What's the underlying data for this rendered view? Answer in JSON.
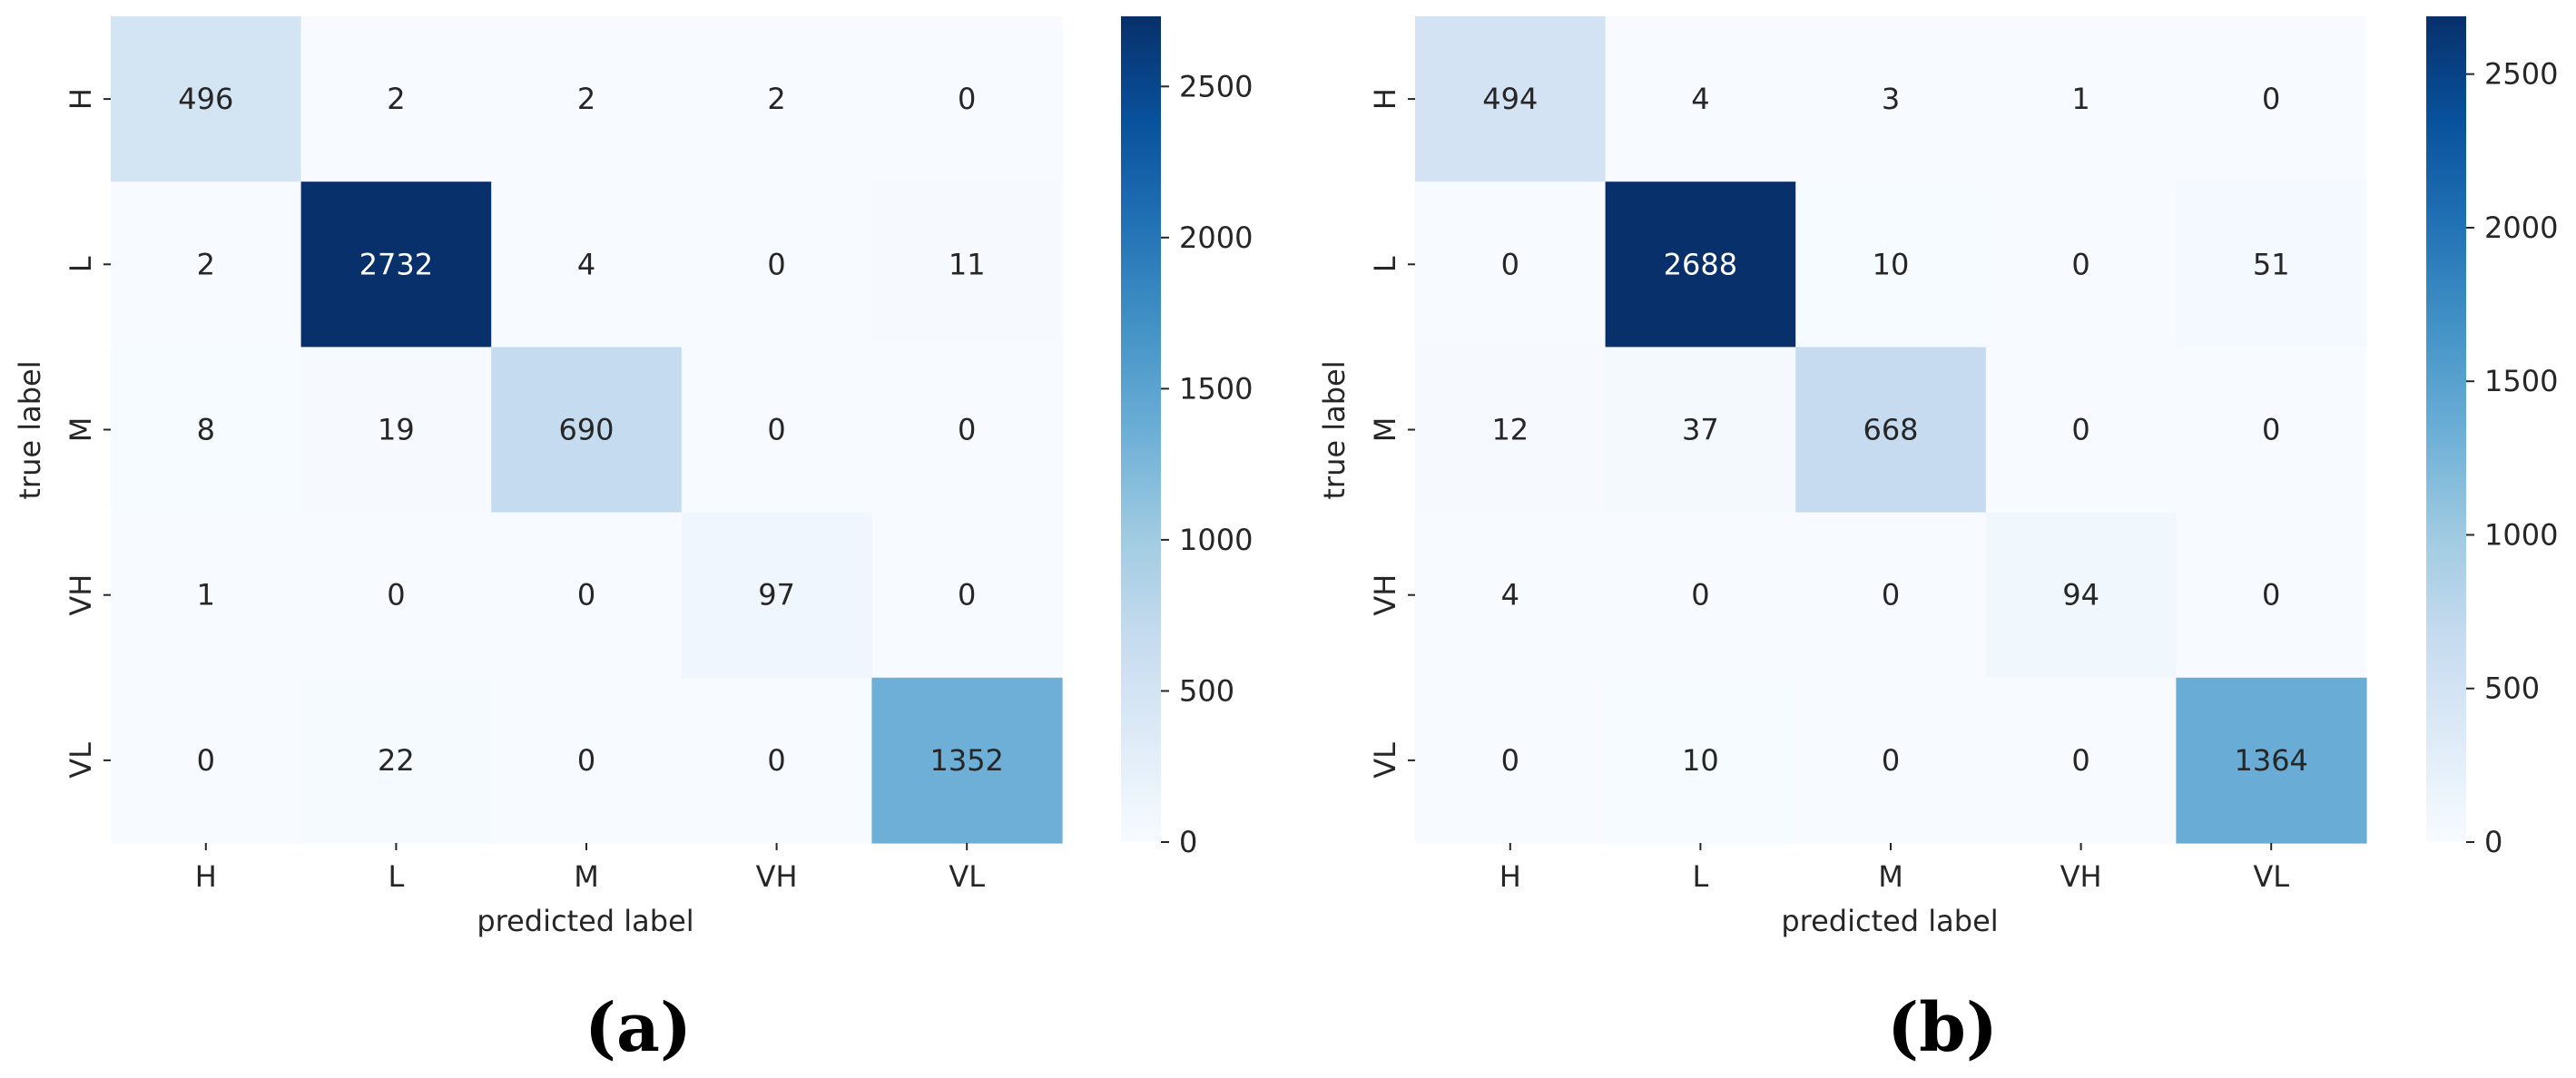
{
  "chart_data": [
    {
      "type": "heatmap",
      "caption": "(a)",
      "xlabel": "predicted label",
      "ylabel": "true label",
      "x_categories": [
        "H",
        "L",
        "M",
        "VH",
        "VL"
      ],
      "y_categories": [
        "H",
        "L",
        "M",
        "VH",
        "VL"
      ],
      "values": [
        [
          496,
          2,
          2,
          2,
          0
        ],
        [
          2,
          2732,
          4,
          0,
          11
        ],
        [
          8,
          19,
          690,
          0,
          0
        ],
        [
          1,
          0,
          0,
          97,
          0
        ],
        [
          0,
          22,
          0,
          0,
          1352
        ]
      ],
      "colorbar": {
        "min": 0,
        "max": 2732,
        "ticks": [
          "0",
          "500",
          "1000",
          "1500",
          "2000",
          "2500"
        ]
      },
      "colormap": "Blues"
    },
    {
      "type": "heatmap",
      "caption": "(b)",
      "xlabel": "predicted label",
      "ylabel": "true label",
      "x_categories": [
        "H",
        "L",
        "M",
        "VH",
        "VL"
      ],
      "y_categories": [
        "H",
        "L",
        "M",
        "VH",
        "VL"
      ],
      "values": [
        [
          494,
          4,
          3,
          1,
          0
        ],
        [
          0,
          2688,
          10,
          0,
          51
        ],
        [
          12,
          37,
          668,
          0,
          0
        ],
        [
          4,
          0,
          0,
          94,
          0
        ],
        [
          0,
          10,
          0,
          0,
          1364
        ]
      ],
      "colorbar": {
        "min": 0,
        "max": 2688,
        "ticks": [
          "0",
          "500",
          "1000",
          "1500",
          "2000",
          "2500"
        ]
      },
      "colormap": "Blues"
    }
  ],
  "colors": {
    "cmap_stops": [
      "#f7fbff",
      "#deebf7",
      "#c6dbef",
      "#9ecae1",
      "#6baed6",
      "#4292c6",
      "#2171b5",
      "#08519c",
      "#08306b"
    ],
    "text_dark": "#262626",
    "text_light": "#ffffff"
  }
}
